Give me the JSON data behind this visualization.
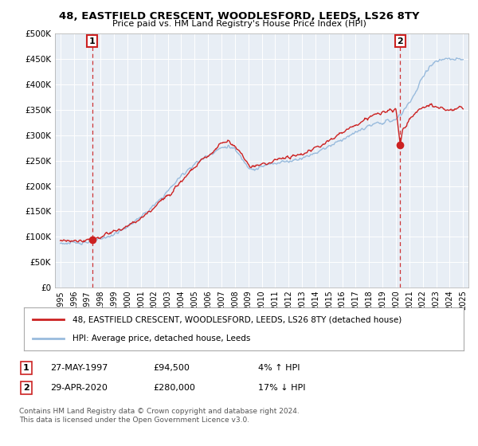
{
  "title": "48, EASTFIELD CRESCENT, WOODLESFORD, LEEDS, LS26 8TY",
  "subtitle": "Price paid vs. HM Land Registry's House Price Index (HPI)",
  "legend_line1": "48, EASTFIELD CRESCENT, WOODLESFORD, LEEDS, LS26 8TY (detached house)",
  "legend_line2": "HPI: Average price, detached house, Leeds",
  "footnote": "Contains HM Land Registry data © Crown copyright and database right 2024.\nThis data is licensed under the Open Government Licence v3.0.",
  "sale1_year": 1997.38,
  "sale1_price": 94500,
  "sale2_year": 2020.32,
  "sale2_price": 280000,
  "hpi_color": "#99bbdd",
  "price_color": "#cc2222",
  "annotation_box_color": "#cc2222",
  "ylim_max": 500000,
  "ylim_min": 0,
  "sale1_label": "27-MAY-1997",
  "sale1_amount": "£94,500",
  "sale1_hpi": "4% ↑ HPI",
  "sale2_label": "29-APR-2020",
  "sale2_amount": "£280,000",
  "sale2_hpi": "17% ↓ HPI",
  "hpi_pts_x": [
    1995,
    1995.5,
    1996,
    1996.5,
    1997,
    1997.5,
    1998,
    1998.5,
    1999,
    1999.5,
    2000,
    2000.5,
    2001,
    2001.5,
    2002,
    2002.5,
    2003,
    2003.5,
    2004,
    2004.5,
    2005,
    2005.5,
    2006,
    2006.5,
    2007,
    2007.5,
    2008,
    2008.5,
    2009,
    2009.5,
    2010,
    2010.5,
    2011,
    2011.5,
    2012,
    2012.5,
    2013,
    2013.5,
    2014,
    2014.5,
    2015,
    2015.5,
    2016,
    2016.5,
    2017,
    2017.5,
    2018,
    2018.5,
    2019,
    2019.5,
    2020,
    2020.5,
    2021,
    2021.5,
    2022,
    2022.5,
    2023,
    2023.5,
    2024,
    2024.5,
    2025
  ],
  "hpi_pts_y": [
    88000,
    87000,
    88000,
    89000,
    90000,
    92000,
    95000,
    100000,
    105000,
    112000,
    120000,
    130000,
    140000,
    150000,
    162000,
    175000,
    190000,
    205000,
    220000,
    232000,
    243000,
    252000,
    260000,
    268000,
    275000,
    278000,
    272000,
    255000,
    238000,
    232000,
    238000,
    242000,
    245000,
    248000,
    248000,
    252000,
    255000,
    260000,
    265000,
    272000,
    278000,
    285000,
    292000,
    298000,
    305000,
    312000,
    318000,
    322000,
    325000,
    328000,
    330000,
    345000,
    365000,
    385000,
    415000,
    435000,
    445000,
    448000,
    450000,
    448000,
    450000
  ],
  "prop_pts_x": [
    1995,
    1995.5,
    1996,
    1996.5,
    1997,
    1997.38,
    1997.5,
    1998,
    1998.5,
    1999,
    1999.5,
    2000,
    2000.5,
    2001,
    2001.5,
    2002,
    2002.5,
    2003,
    2003.5,
    2004,
    2004.5,
    2005,
    2005.5,
    2006,
    2006.5,
    2007,
    2007.5,
    2008,
    2008.5,
    2009,
    2009.5,
    2010,
    2010.5,
    2011,
    2011.5,
    2012,
    2012.5,
    2013,
    2013.5,
    2014,
    2014.5,
    2015,
    2015.5,
    2016,
    2016.5,
    2017,
    2017.5,
    2018,
    2018.5,
    2019,
    2019.5,
    2020,
    2020.32,
    2020.5,
    2021,
    2021.5,
    2022,
    2022.5,
    2023,
    2023.5,
    2024,
    2024.5,
    2025
  ],
  "prop_pts_y": [
    92000,
    91000,
    92000,
    93000,
    94000,
    94500,
    96000,
    100000,
    105000,
    110000,
    115000,
    120000,
    128000,
    136000,
    145000,
    158000,
    170000,
    183000,
    196000,
    210000,
    225000,
    238000,
    250000,
    260000,
    270000,
    285000,
    288000,
    280000,
    262000,
    242000,
    238000,
    242000,
    246000,
    250000,
    255000,
    258000,
    260000,
    264000,
    268000,
    275000,
    282000,
    290000,
    298000,
    305000,
    312000,
    320000,
    328000,
    335000,
    340000,
    345000,
    348000,
    350000,
    280000,
    310000,
    330000,
    345000,
    355000,
    358000,
    355000,
    352000,
    350000,
    352000,
    355000
  ]
}
